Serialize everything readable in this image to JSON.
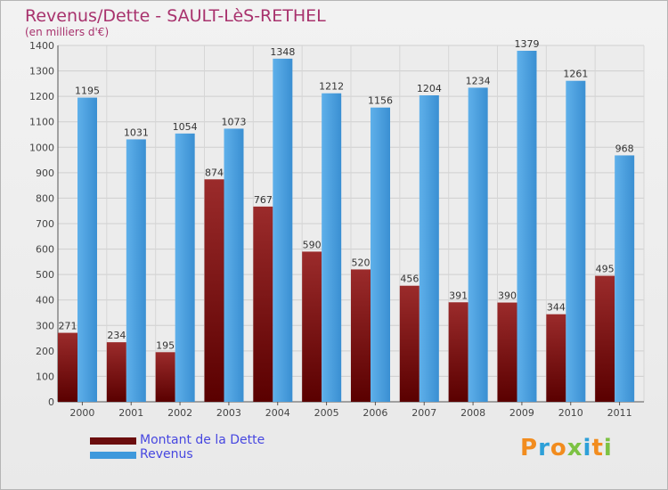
{
  "chart_data": {
    "type": "bar",
    "title": "Revenus/Dette - SAULT-LèS-RETHEL",
    "subtitle": "(en milliers d'€)",
    "categories": [
      "2000",
      "2001",
      "2002",
      "2003",
      "2004",
      "2005",
      "2006",
      "2007",
      "2008",
      "2009",
      "2010",
      "2011"
    ],
    "series": [
      {
        "name": "Montant de la Dette",
        "color": "#8b1a1a",
        "values": [
          271,
          234,
          195,
          874,
          767,
          590,
          520,
          456,
          391,
          390,
          344,
          495
        ]
      },
      {
        "name": "Revenus",
        "color": "#3f99dc",
        "values": [
          1195,
          1031,
          1054,
          1073,
          1348,
          1212,
          1156,
          1204,
          1234,
          1379,
          1261,
          968
        ]
      }
    ],
    "ylim": [
      0,
      1400
    ],
    "yticks": [
      0,
      100,
      200,
      300,
      400,
      500,
      600,
      700,
      800,
      900,
      1000,
      1100,
      1200,
      1300,
      1400
    ],
    "grid": true,
    "legend_position": "bottom-left"
  },
  "legend": {
    "debt_label": "Montant de la Dette",
    "revenue_label": "Revenus"
  },
  "logo": {
    "letters": [
      {
        "ch": "P",
        "color": "#f28c1e"
      },
      {
        "ch": "r",
        "color": "#2ea0d8"
      },
      {
        "ch": "o",
        "color": "#f28c1e"
      },
      {
        "ch": "x",
        "color": "#7cc243"
      },
      {
        "ch": "i",
        "color": "#2ea0d8"
      },
      {
        "ch": "t",
        "color": "#f28c1e"
      },
      {
        "ch": "i",
        "color": "#7cc243"
      }
    ]
  }
}
